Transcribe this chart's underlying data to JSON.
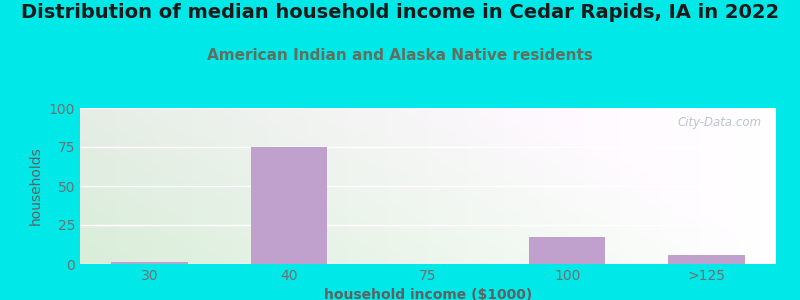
{
  "title": "Distribution of median household income in Cedar Rapids, IA in 2022",
  "subtitle": "American Indian and Alaska Native residents",
  "xlabel": "household income ($1000)",
  "ylabel": "households",
  "categories": [
    "30",
    "40",
    "75",
    "100",
    ">125"
  ],
  "values": [
    1,
    75,
    0,
    17,
    6
  ],
  "bar_color": "#c0a0cc",
  "ylim": [
    0,
    100
  ],
  "yticks": [
    0,
    25,
    50,
    75,
    100
  ],
  "background_outer": "#00e8e8",
  "background_plot_topleft": "#d8f0d8",
  "background_plot_topright": "#e8f4f4",
  "background_plot_bottom": "#f8faf8",
  "title_fontsize": 14,
  "subtitle_fontsize": 11,
  "subtitle_color": "#607060",
  "watermark_text": "City-Data.com",
  "watermark_color": "#a8b8c0",
  "grid_color": "#d8e8d8",
  "bar_width": 0.55,
  "tick_color": "#707070",
  "label_color": "#606060"
}
